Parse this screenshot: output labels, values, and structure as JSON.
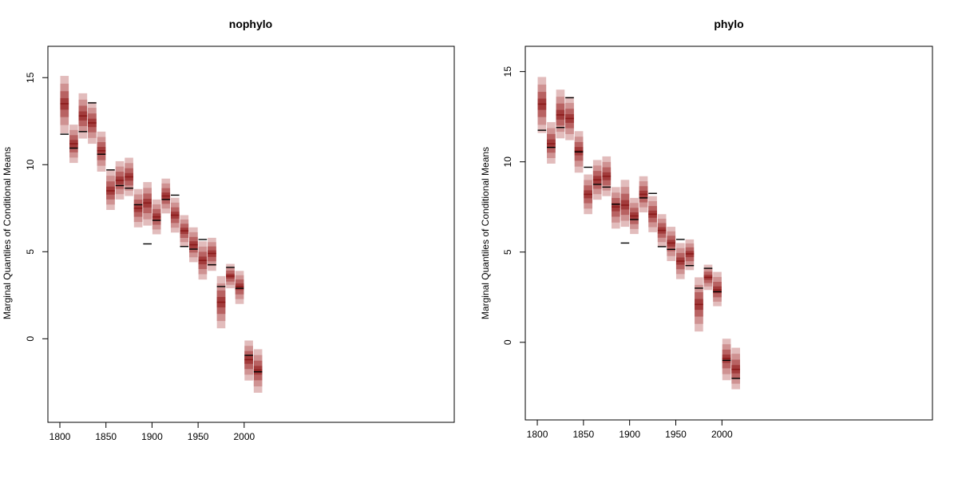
{
  "colors": {
    "band_outer": "#e2bcbc",
    "band_mid": "#cf9292",
    "band_inner": "#b86262",
    "band_core": "#a23b3b",
    "median": "#8b1a1a",
    "observed": "#000000",
    "axis": "#000000"
  },
  "chart_data": [
    {
      "type": "interval",
      "title": "nophylo",
      "xlabel": "",
      "ylabel": "Marginal Quantiles of Conditional Means",
      "xlim": [
        1787,
        2228
      ],
      "ylim": [
        -4.8,
        16.8
      ],
      "xticks": [
        1800,
        1850,
        1900,
        1950,
        2000
      ],
      "yticks": [
        0,
        5,
        10,
        15
      ],
      "bin_width": 10,
      "series": [
        {
          "x": 1805,
          "median": 13.5,
          "low": 11.8,
          "high": 15.1,
          "observed": 11.75
        },
        {
          "x": 1815,
          "median": 11.2,
          "low": 10.1,
          "high": 12.3,
          "observed": 10.95
        },
        {
          "x": 1825,
          "median": 12.8,
          "low": 11.5,
          "high": 14.1,
          "observed": 11.9
        },
        {
          "x": 1835,
          "median": 12.4,
          "low": 11.2,
          "high": 13.6,
          "observed": 13.55
        },
        {
          "x": 1845,
          "median": 10.8,
          "low": 9.6,
          "high": 11.9,
          "observed": 10.6
        },
        {
          "x": 1855,
          "median": 8.5,
          "low": 7.4,
          "high": 9.7,
          "observed": 9.7
        },
        {
          "x": 1865,
          "median": 9.1,
          "low": 8.0,
          "high": 10.2,
          "observed": 8.8
        },
        {
          "x": 1875,
          "median": 9.3,
          "low": 8.2,
          "high": 10.4,
          "observed": 8.65
        },
        {
          "x": 1885,
          "median": 7.5,
          "low": 6.4,
          "high": 8.6,
          "observed": 7.7
        },
        {
          "x": 1895,
          "median": 7.8,
          "low": 6.5,
          "high": 9.0,
          "observed": 5.45
        },
        {
          "x": 1905,
          "median": 7.0,
          "low": 6.0,
          "high": 8.0,
          "observed": 6.8
        },
        {
          "x": 1915,
          "median": 8.2,
          "low": 7.2,
          "high": 9.2,
          "observed": 8.0
        },
        {
          "x": 1925,
          "median": 7.1,
          "low": 6.1,
          "high": 8.1,
          "observed": 8.25
        },
        {
          "x": 1935,
          "median": 6.2,
          "low": 5.3,
          "high": 7.1,
          "observed": 5.3
        },
        {
          "x": 1945,
          "median": 5.4,
          "low": 4.4,
          "high": 6.4,
          "observed": 5.15
        },
        {
          "x": 1955,
          "median": 4.5,
          "low": 3.4,
          "high": 5.6,
          "observed": 5.7
        },
        {
          "x": 1965,
          "median": 4.9,
          "low": 3.9,
          "high": 5.8,
          "observed": 4.25
        },
        {
          "x": 1975,
          "median": 2.1,
          "low": 0.6,
          "high": 3.6,
          "observed": 3.0
        },
        {
          "x": 1985,
          "median": 3.6,
          "low": 2.9,
          "high": 4.3,
          "observed": 4.1
        },
        {
          "x": 1995,
          "median": 3.0,
          "low": 2.0,
          "high": 3.9,
          "observed": 2.9
        },
        {
          "x": 2005,
          "median": -1.2,
          "low": -2.4,
          "high": -0.1,
          "observed": -0.95
        },
        {
          "x": 2015,
          "median": -1.8,
          "low": -3.1,
          "high": -0.6,
          "observed": -1.9
        }
      ]
    },
    {
      "type": "interval",
      "title": "phylo",
      "xlabel": "",
      "ylabel": "Marginal Quantiles of Conditional Means",
      "xlim": [
        1787,
        2228
      ],
      "ylim": [
        -4.3,
        16.4
      ],
      "xticks": [
        1800,
        1850,
        1900,
        1950,
        2000
      ],
      "yticks": [
        0,
        5,
        10,
        15
      ],
      "bin_width": 10,
      "series": [
        {
          "x": 1805,
          "median": 13.2,
          "low": 11.6,
          "high": 14.7,
          "observed": 11.75
        },
        {
          "x": 1815,
          "median": 11.0,
          "low": 9.9,
          "high": 12.2,
          "observed": 10.8
        },
        {
          "x": 1825,
          "median": 12.6,
          "low": 11.3,
          "high": 14.0,
          "observed": 11.9
        },
        {
          "x": 1835,
          "median": 12.4,
          "low": 11.2,
          "high": 13.6,
          "observed": 13.55
        },
        {
          "x": 1845,
          "median": 10.6,
          "low": 9.4,
          "high": 11.7,
          "observed": 10.55
        },
        {
          "x": 1855,
          "median": 8.2,
          "low": 7.1,
          "high": 9.3,
          "observed": 9.7
        },
        {
          "x": 1865,
          "median": 9.0,
          "low": 7.9,
          "high": 10.1,
          "observed": 8.75
        },
        {
          "x": 1875,
          "median": 9.2,
          "low": 8.1,
          "high": 10.3,
          "observed": 8.6
        },
        {
          "x": 1885,
          "median": 7.5,
          "low": 6.3,
          "high": 8.6,
          "observed": 7.65
        },
        {
          "x": 1895,
          "median": 7.6,
          "low": 6.4,
          "high": 9.0,
          "observed": 5.5
        },
        {
          "x": 1905,
          "median": 7.0,
          "low": 6.0,
          "high": 8.0,
          "observed": 6.8
        },
        {
          "x": 1915,
          "median": 8.2,
          "low": 7.2,
          "high": 9.2,
          "observed": 8.0
        },
        {
          "x": 1925,
          "median": 7.1,
          "low": 6.1,
          "high": 8.1,
          "observed": 8.25
        },
        {
          "x": 1935,
          "median": 6.2,
          "low": 5.3,
          "high": 7.1,
          "observed": 5.3
        },
        {
          "x": 1945,
          "median": 5.5,
          "low": 4.5,
          "high": 6.4,
          "observed": 5.15
        },
        {
          "x": 1955,
          "median": 4.5,
          "low": 3.5,
          "high": 5.5,
          "observed": 5.7
        },
        {
          "x": 1965,
          "median": 4.9,
          "low": 4.0,
          "high": 5.7,
          "observed": 4.25
        },
        {
          "x": 1975,
          "median": 2.1,
          "low": 0.6,
          "high": 3.6,
          "observed": 3.0
        },
        {
          "x": 1985,
          "median": 3.6,
          "low": 2.9,
          "high": 4.3,
          "observed": 4.1
        },
        {
          "x": 1995,
          "median": 2.9,
          "low": 2.0,
          "high": 3.9,
          "observed": 2.8
        },
        {
          "x": 2005,
          "median": -0.9,
          "low": -2.1,
          "high": 0.2,
          "observed": -1.0
        },
        {
          "x": 2015,
          "median": -1.5,
          "low": -2.6,
          "high": -0.3,
          "observed": -2.0
        }
      ]
    }
  ]
}
